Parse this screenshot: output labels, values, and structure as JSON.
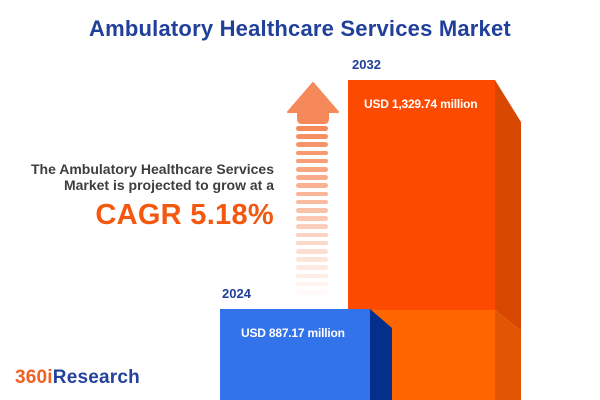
{
  "title": "Ambulatory Healthcare Services Market",
  "promo": {
    "line1": "The Ambulatory Healthcare Services",
    "line2": "Market is projected to grow at a",
    "cagr_label": "CAGR 5.18%"
  },
  "logo": {
    "part_orange": "360i",
    "part_blue": "Research"
  },
  "chart_data": {
    "type": "bar",
    "title": "Ambulatory Healthcare Services Market",
    "categories": [
      "2024",
      "2032"
    ],
    "values": [
      887.17,
      1329.74
    ],
    "value_labels": [
      "USD 887.17 million",
      "USD 1,329.74 million"
    ],
    "unit": "USD million",
    "cagr_percent": 5.18,
    "legend": "none",
    "axes": "hidden",
    "not_to_scale": true,
    "layout": "3d-columns with upward growth arrow between annotation and bars"
  },
  "colors": {
    "title_blue": "#21409A",
    "text_dark": "#3E3E3E",
    "accent_orange": "#F4570E",
    "arrow_orange": "#F6895A",
    "bar2024_front": "#3273EA",
    "bar2024_side": "#04308C",
    "bar2032_front_top": "#FC4A01",
    "bar2032_front_bottom": "#FF6602",
    "bar2032_side_top": "#D94801",
    "bar2032_side_bottom": "#E15603",
    "logo_orange": "#F26122",
    "logo_blue": "#24429B"
  }
}
